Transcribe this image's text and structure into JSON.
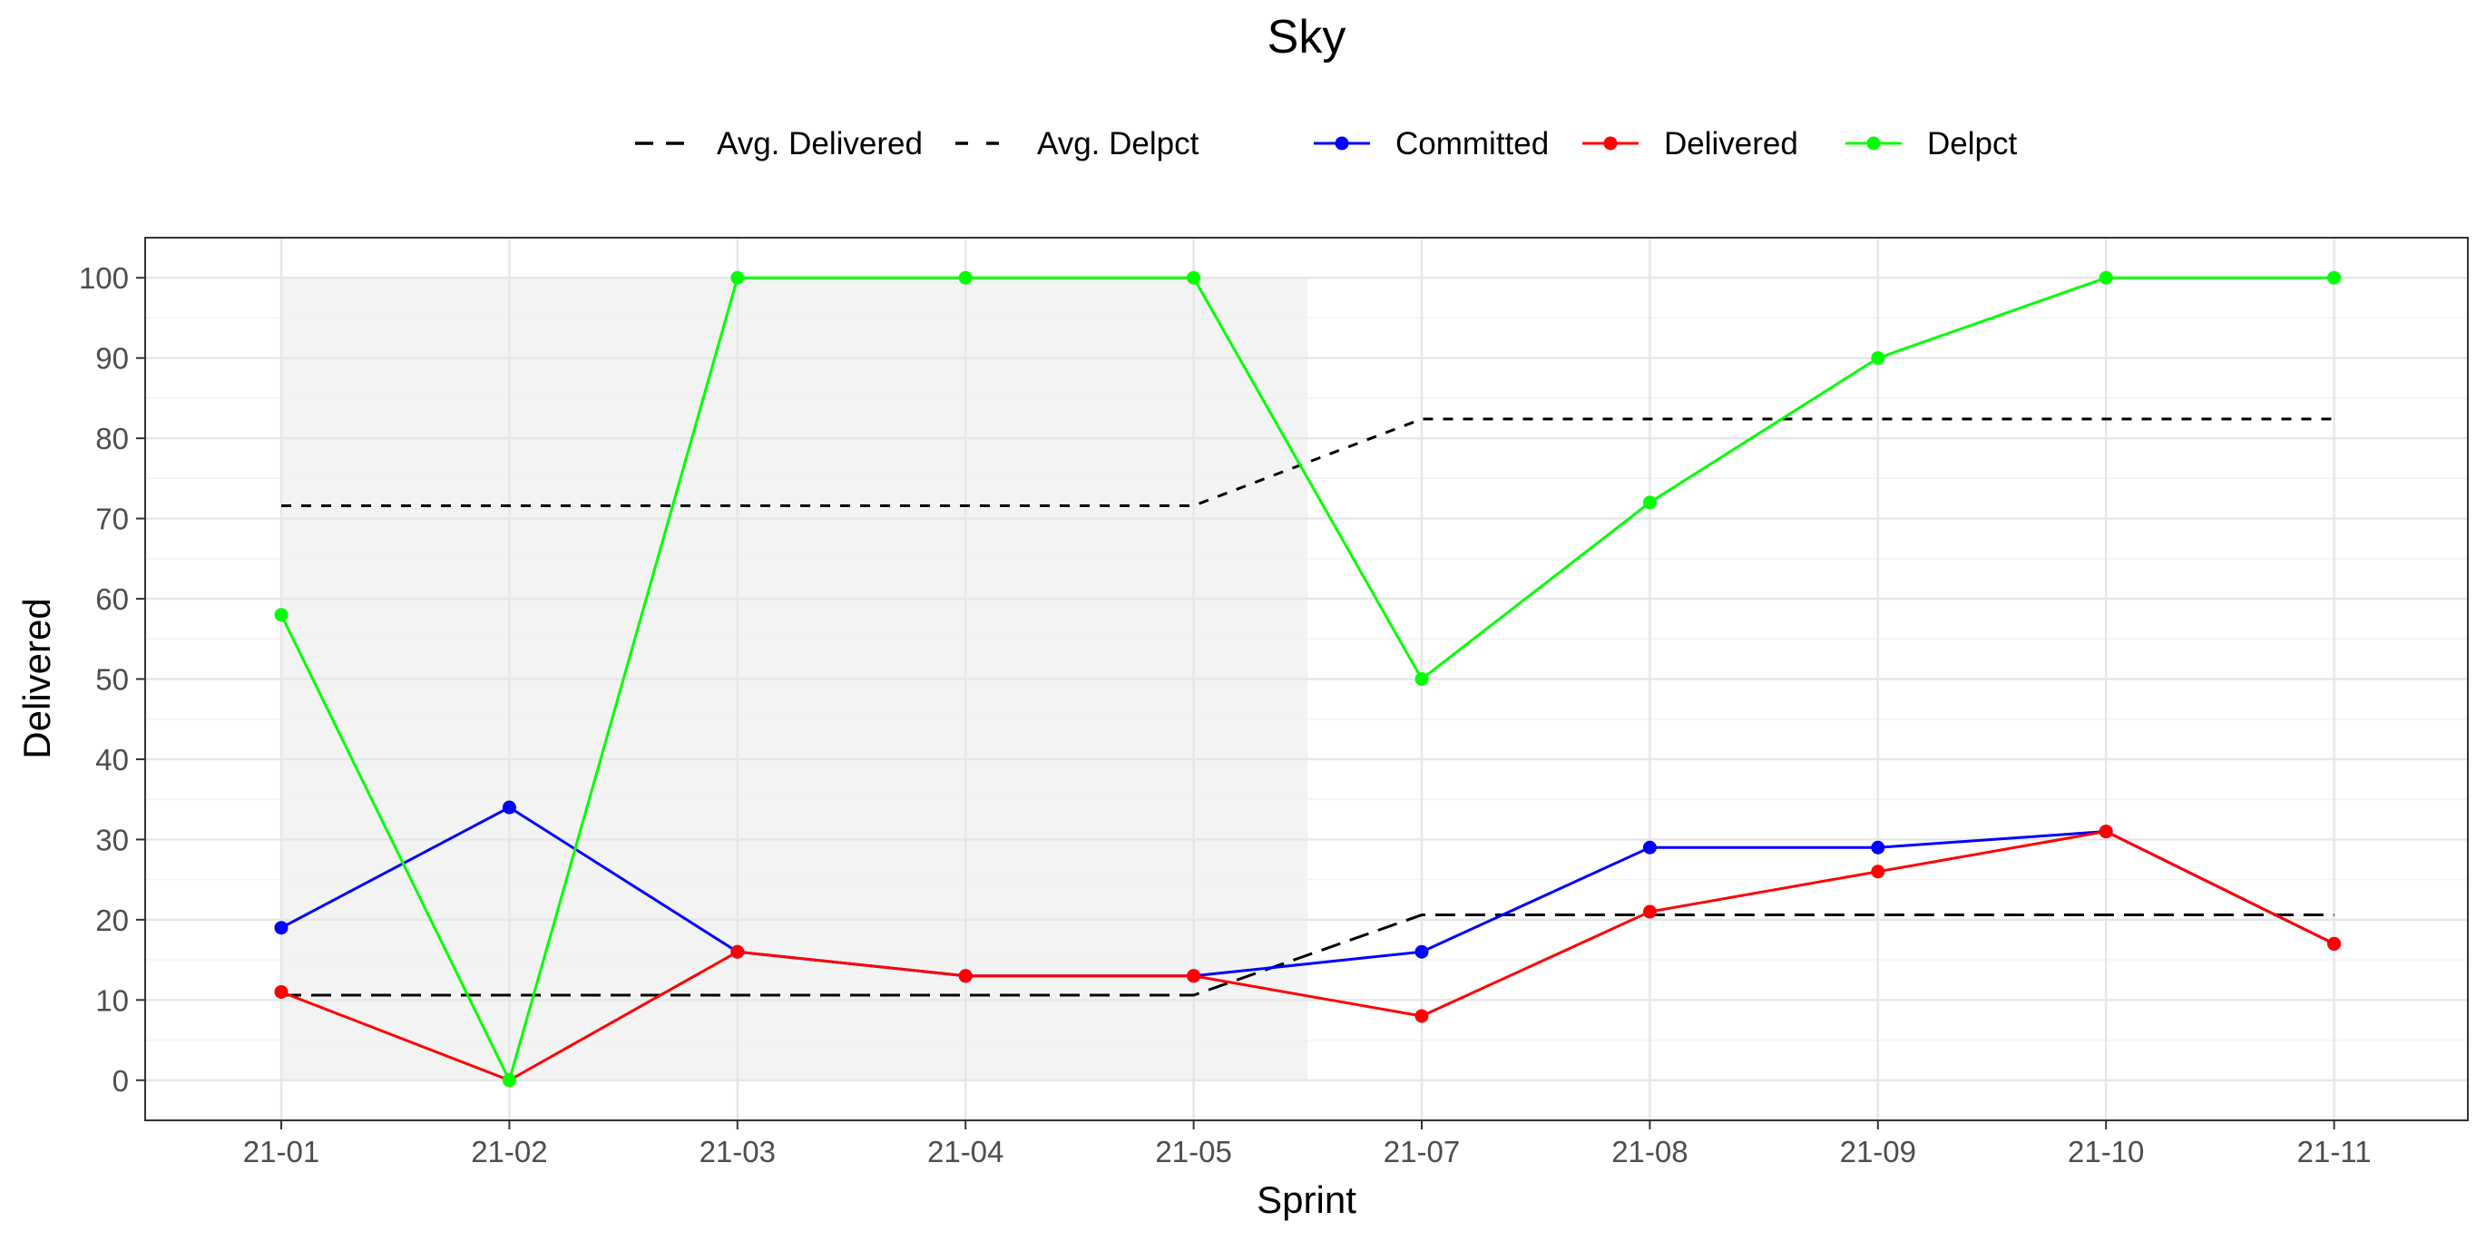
{
  "chart_data": {
    "type": "line",
    "title": "Sky",
    "xlabel": "Sprint",
    "ylabel": "Delivered",
    "categories": [
      "21-01",
      "21-02",
      "21-03",
      "21-04",
      "21-05",
      "21-07",
      "21-08",
      "21-09",
      "21-10",
      "21-11"
    ],
    "ylim": [
      -5,
      105
    ],
    "yticks": [
      0,
      10,
      20,
      30,
      40,
      50,
      60,
      70,
      80,
      90,
      100
    ],
    "grid": true,
    "legend_position": "top",
    "shaded_region": {
      "from_category": "21-01",
      "to_category": "21-05",
      "y_range": [
        0,
        100
      ],
      "color": "#ebebeb"
    },
    "series": [
      {
        "name": "Committed",
        "color": "#0000ff",
        "values": [
          19,
          34,
          16,
          13,
          13,
          16,
          29,
          29,
          31,
          17
        ]
      },
      {
        "name": "Delivered",
        "color": "#ff0000",
        "values": [
          11,
          0,
          16,
          13,
          13,
          8,
          21,
          26,
          31,
          17
        ]
      },
      {
        "name": "Delpct",
        "color": "#00ff00",
        "values": [
          58,
          0,
          100,
          100,
          100,
          50,
          72,
          90,
          100,
          100
        ]
      }
    ],
    "reference_lines": [
      {
        "name": "Avg. Delivered",
        "color": "#000000",
        "dash": "long",
        "values": [
          10.6,
          10.6,
          10.6,
          10.6,
          10.6,
          20.6,
          20.6,
          20.6,
          20.6,
          20.6
        ]
      },
      {
        "name": "Avg. Delpct",
        "color": "#000000",
        "dash": "short",
        "values": [
          71.6,
          71.6,
          71.6,
          71.6,
          71.6,
          82.4,
          82.4,
          82.4,
          82.4,
          82.4
        ]
      }
    ]
  }
}
